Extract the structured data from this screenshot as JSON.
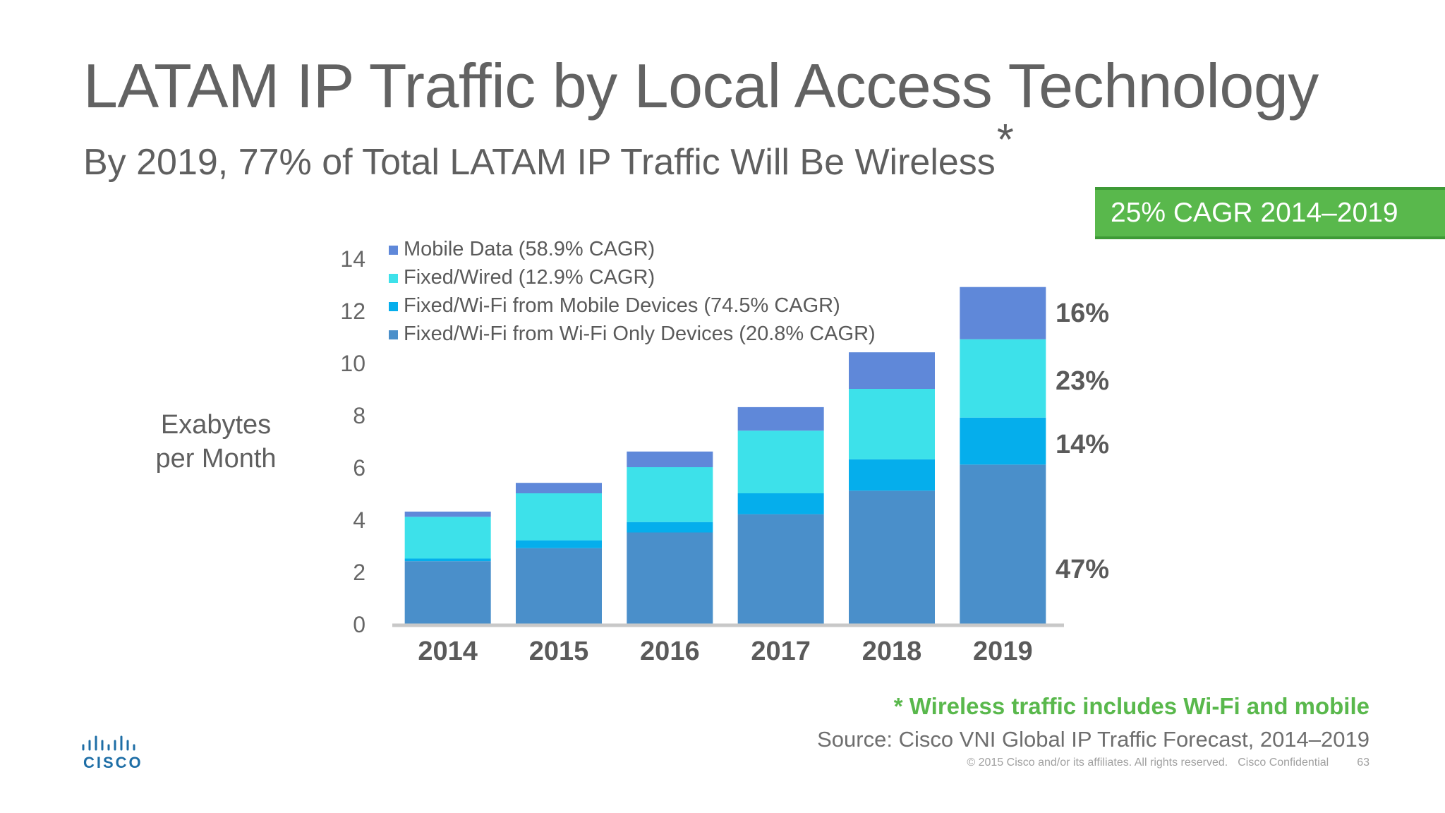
{
  "header": {
    "title": "LATAM IP Traffic by Local Access Technology",
    "subtitle": "By 2019, 77% of Total LATAM IP Traffic Will Be Wireless",
    "subtitle_mark": "*"
  },
  "cagr_badge": "25% CAGR 2014–2019",
  "y_axis_label": [
    "Exabytes",
    "per Month"
  ],
  "chart_data": {
    "type": "bar",
    "stacked": true,
    "categories": [
      "2014",
      "2015",
      "2016",
      "2017",
      "2018",
      "2019"
    ],
    "series": [
      {
        "name": "Fixed/Wi-Fi from Wi-Fi Only Devices (20.8% CAGR)",
        "color": "#4a8fca",
        "values": [
          2.4,
          2.9,
          3.5,
          4.2,
          5.1,
          6.1
        ]
      },
      {
        "name": "Fixed/Wi-Fi from Mobile Devices (74.5% CAGR)",
        "color": "#05aeec",
        "values": [
          0.1,
          0.3,
          0.4,
          0.8,
          1.2,
          1.8
        ]
      },
      {
        "name": "Fixed/Wired (12.9% CAGR)",
        "color": "#3de1ea",
        "values": [
          1.6,
          1.8,
          2.1,
          2.4,
          2.7,
          3.0
        ]
      },
      {
        "name": "Mobile Data (58.9% CAGR)",
        "color": "#5f88d9",
        "values": [
          0.2,
          0.4,
          0.6,
          0.9,
          1.4,
          2.0
        ]
      }
    ],
    "legend_order": [
      3,
      2,
      1,
      0
    ],
    "ylim": [
      0,
      14
    ],
    "yticks": [
      0,
      2,
      4,
      6,
      8,
      10,
      12,
      14
    ],
    "legend_position": "top-left",
    "grid": false,
    "share_labels_2019": [
      "47%",
      "14%",
      "23%",
      "16%"
    ]
  },
  "footer": {
    "footnote": "* Wireless traffic includes Wi-Fi and mobile",
    "source": "Source: Cisco VNI Global IP Traffic Forecast, 2014–2019",
    "copyright": "© 2015  Cisco and/or its affiliates. All rights reserved.",
    "confidential": "Cisco Confidential",
    "page_number": "63",
    "logo_text": "CISCO"
  }
}
